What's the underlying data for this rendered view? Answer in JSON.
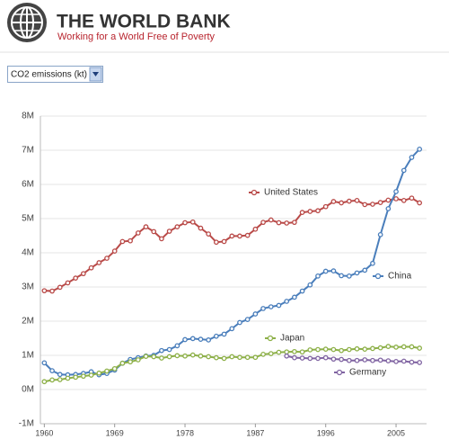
{
  "header": {
    "title": "THE WORLD BANK",
    "tagline": "Working for a World Free of Poverty"
  },
  "selector": {
    "label": "CO2 emissions (kt)"
  },
  "chart_data": {
    "type": "line",
    "x": [
      1960,
      1961,
      1962,
      1963,
      1964,
      1965,
      1966,
      1967,
      1968,
      1969,
      1970,
      1971,
      1972,
      1973,
      1974,
      1975,
      1976,
      1977,
      1978,
      1979,
      1980,
      1981,
      1982,
      1983,
      1984,
      1985,
      1986,
      1987,
      1988,
      1989,
      1990,
      1991,
      1992,
      1993,
      1994,
      1995,
      1996,
      1997,
      1998,
      1999,
      2000,
      2001,
      2002,
      2003,
      2004,
      2005,
      2006,
      2007,
      2008
    ],
    "xlim": [
      1959.5,
      2008.9
    ],
    "xticks": [
      1960,
      1969,
      1978,
      1987,
      1996,
      2005
    ],
    "ylim": [
      -1000000,
      8000000
    ],
    "yticks": [
      {
        "value": -1000000,
        "label": "-1M"
      },
      {
        "value": 0,
        "label": "0M"
      },
      {
        "value": 1000000,
        "label": "1M"
      },
      {
        "value": 2000000,
        "label": "2M"
      },
      {
        "value": 3000000,
        "label": "3M"
      },
      {
        "value": 4000000,
        "label": "4M"
      },
      {
        "value": 5000000,
        "label": "5M"
      },
      {
        "value": 6000000,
        "label": "6M"
      },
      {
        "value": 7000000,
        "label": "7M"
      },
      {
        "value": 8000000,
        "label": "8M"
      }
    ],
    "grid": true,
    "series": [
      {
        "name": "United States",
        "color": "#b94a48",
        "values": [
          2890000.0,
          2880000.0,
          2990000.0,
          3120000.0,
          3260000.0,
          3390000.0,
          3560000.0,
          3710000.0,
          3840000.0,
          4050000.0,
          4330000.0,
          4350000.0,
          4580000.0,
          4760000.0,
          4620000.0,
          4410000.0,
          4630000.0,
          4760000.0,
          4880000.0,
          4900000.0,
          4720000.0,
          4550000.0,
          4310000.0,
          4330000.0,
          4490000.0,
          4490000.0,
          4510000.0,
          4690000.0,
          4890000.0,
          4960000.0,
          4880000.0,
          4870000.0,
          4890000.0,
          5180000.0,
          5210000.0,
          5230000.0,
          5350000.0,
          5500000.0,
          5460000.0,
          5510000.0,
          5530000.0,
          5410000.0,
          5420000.0,
          5470000.0,
          5540000.0,
          5580000.0,
          5530000.0,
          5600000.0,
          5460000.0
        ]
      },
      {
        "name": "China",
        "color": "#4a7ebb",
        "values": [
          780000.0,
          550000.0,
          440000.0,
          430000.0,
          440000.0,
          470000.0,
          520000.0,
          430000.0,
          470000.0,
          570000.0,
          770000.0,
          880000.0,
          930000.0,
          980000.0,
          1000000.0,
          1140000.0,
          1170000.0,
          1280000.0,
          1460000.0,
          1490000.0,
          1470000.0,
          1450000.0,
          1560000.0,
          1620000.0,
          1780000.0,
          1960000.0,
          2050000.0,
          2210000.0,
          2370000.0,
          2420000.0,
          2460000.0,
          2580000.0,
          2700000.0,
          2880000.0,
          3060000.0,
          3320000.0,
          3460000.0,
          3470000.0,
          3330000.0,
          3320000.0,
          3410000.0,
          3490000.0,
          3690000.0,
          4530000.0,
          5290000.0,
          5790000.0,
          6410000.0,
          6790000.0,
          7030000.0
        ]
      },
      {
        "name": "Japan",
        "color": "#8db048",
        "values": [
          230000.0,
          280000.0,
          290000.0,
          330000.0,
          360000.0,
          390000.0,
          420000.0,
          480000.0,
          540000.0,
          610000.0,
          770000.0,
          810000.0,
          870000.0,
          970000.0,
          960000.0,
          920000.0,
          960000.0,
          990000.0,
          980000.0,
          1010000.0,
          980000.0,
          960000.0,
          930000.0,
          910000.0,
          960000.0,
          940000.0,
          940000.0,
          940000.0,
          1030000.0,
          1050000.0,
          1090000.0,
          1100000.0,
          1110000.0,
          1100000.0,
          1160000.0,
          1170000.0,
          1180000.0,
          1170000.0,
          1140000.0,
          1170000.0,
          1190000.0,
          1180000.0,
          1200000.0,
          1220000.0,
          1260000.0,
          1240000.0,
          1250000.0,
          1250000.0,
          1210000.0
        ]
      },
      {
        "name": "Germany",
        "color": "#8064a2",
        "values": [
          null,
          null,
          null,
          null,
          null,
          null,
          null,
          null,
          null,
          null,
          null,
          null,
          null,
          null,
          null,
          null,
          null,
          null,
          null,
          null,
          null,
          null,
          null,
          null,
          null,
          null,
          null,
          null,
          null,
          null,
          null,
          980000.0,
          930000.0,
          920000.0,
          910000.0,
          910000.0,
          930000.0,
          890000.0,
          880000.0,
          850000.0,
          850000.0,
          870000.0,
          850000.0,
          860000.0,
          840000.0,
          820000.0,
          830000.0,
          800000.0,
          790000.0
        ]
      }
    ]
  }
}
